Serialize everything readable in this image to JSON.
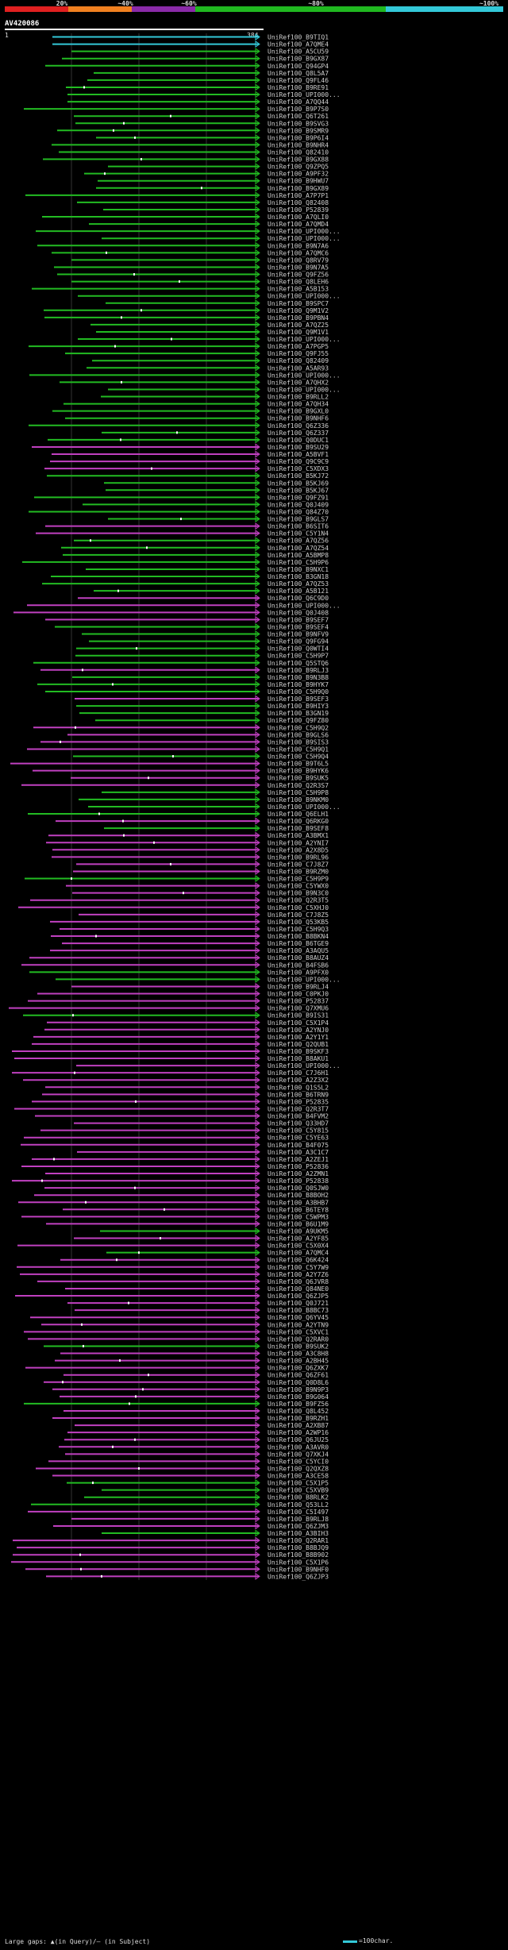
{
  "legend": {
    "labels": [
      "20%",
      "~40%",
      "~60%",
      "~80%",
      "~100%"
    ],
    "colors": [
      "#e02020",
      "#f08020",
      "#8a2aa8",
      "#20b820",
      "#33c8d8"
    ]
  },
  "query": {
    "name": "AV420086",
    "range_start": "1",
    "range_end": "384"
  },
  "colors": {
    "cyan": "#33c8d8",
    "green": "#22bb22",
    "magenta": "#c040c0",
    "gridline": "#333333"
  },
  "footer": {
    "gaps_text": "Large gaps: ▲(in Query)/— (in Subject)",
    "scale_text": "=100char."
  },
  "hits": [
    {
      "name": "UniRef100_B9TIQ1",
      "color": "cyan"
    },
    {
      "name": "UniRef100_A7QME4",
      "color": "cyan"
    },
    {
      "name": "UniRef100_A5CU59",
      "color": "green"
    },
    {
      "name": "UniRef100_B9GX87",
      "color": "green"
    },
    {
      "name": "UniRef100_Q94GP4",
      "color": "green"
    },
    {
      "name": "UniRef100_Q8L5A7",
      "color": "green"
    },
    {
      "name": "UniRef100_Q9FL46",
      "color": "green"
    },
    {
      "name": "UniRef100_B9RE91",
      "color": "green"
    },
    {
      "name": "UniRef100_UPI000...",
      "color": "green"
    },
    {
      "name": "UniRef100_A7QQ44",
      "color": "green"
    },
    {
      "name": "UniRef100_B9P7S0",
      "color": "green"
    },
    {
      "name": "UniRef100_Q6T261",
      "color": "green"
    },
    {
      "name": "UniRef100_B9SVG3",
      "color": "green"
    },
    {
      "name": "UniRef100_B9SMR9",
      "color": "green"
    },
    {
      "name": "UniRef100_B9P6I4",
      "color": "green"
    },
    {
      "name": "UniRef100_B9NHR4",
      "color": "green"
    },
    {
      "name": "UniRef100_Q82410",
      "color": "green"
    },
    {
      "name": "UniRef100_B9GX88",
      "color": "green"
    },
    {
      "name": "UniRef100_Q9ZPQ5",
      "color": "green"
    },
    {
      "name": "UniRef100_A9PF32",
      "color": "green"
    },
    {
      "name": "UniRef100_B9HWU7",
      "color": "green"
    },
    {
      "name": "UniRef100_B9GX89",
      "color": "green"
    },
    {
      "name": "UniRef100_A7P7P1",
      "color": "green"
    },
    {
      "name": "UniRef100_Q82408",
      "color": "green"
    },
    {
      "name": "UniRef100_P52839",
      "color": "green"
    },
    {
      "name": "UniRef100_A7QLI0",
      "color": "green"
    },
    {
      "name": "UniRef100_A7QMD4",
      "color": "green"
    },
    {
      "name": "UniRef100_UPI000...",
      "color": "green"
    },
    {
      "name": "UniRef100_UPI000...",
      "color": "green"
    },
    {
      "name": "UniRef100_B9N7A6",
      "color": "green"
    },
    {
      "name": "UniRef100_A7QMC6",
      "color": "green"
    },
    {
      "name": "UniRef100_Q8RV79",
      "color": "green"
    },
    {
      "name": "UniRef100_B9N7A5",
      "color": "green"
    },
    {
      "name": "UniRef100_Q9FZ56",
      "color": "green"
    },
    {
      "name": "UniRef100_Q8LEH6",
      "color": "green"
    },
    {
      "name": "UniRef100_A5B153",
      "color": "green"
    },
    {
      "name": "UniRef100_UPI000...",
      "color": "green"
    },
    {
      "name": "UniRef100_B9SPC7",
      "color": "green"
    },
    {
      "name": "UniRef100_Q9M1V2",
      "color": "green"
    },
    {
      "name": "UniRef100_B9PBN4",
      "color": "green"
    },
    {
      "name": "UniRef100_A7QZ25",
      "color": "green"
    },
    {
      "name": "UniRef100_Q9M1V1",
      "color": "green"
    },
    {
      "name": "UniRef100_UPI000...",
      "color": "green"
    },
    {
      "name": "UniRef100_A7PGP5",
      "color": "green"
    },
    {
      "name": "UniRef100_Q9FJ55",
      "color": "green"
    },
    {
      "name": "UniRef100_Q82409",
      "color": "green"
    },
    {
      "name": "UniRef100_A5AR93",
      "color": "green"
    },
    {
      "name": "UniRef100_UPI000...",
      "color": "green"
    },
    {
      "name": "UniRef100_A7QHX2",
      "color": "green"
    },
    {
      "name": "UniRef100_UPI000...",
      "color": "green"
    },
    {
      "name": "UniRef100_B9RLL2",
      "color": "green"
    },
    {
      "name": "UniRef100_A7QH34",
      "color": "green"
    },
    {
      "name": "UniRef100_B9GXL0",
      "color": "green"
    },
    {
      "name": "UniRef100_B9NHF6",
      "color": "green"
    },
    {
      "name": "UniRef100_Q6Z336",
      "color": "green"
    },
    {
      "name": "UniRef100_Q6Z337",
      "color": "green"
    },
    {
      "name": "UniRef100_Q0DUC1",
      "color": "green"
    },
    {
      "name": "UniRef100_B9SU29",
      "color": "magenta"
    },
    {
      "name": "UniRef100_A5BVF1",
      "color": "magenta"
    },
    {
      "name": "UniRef100_Q9C9C9",
      "color": "magenta"
    },
    {
      "name": "UniRef100_C5XDX3",
      "color": "magenta"
    },
    {
      "name": "UniRef100_B5KJ72",
      "color": "green"
    },
    {
      "name": "UniRef100_B5KJ69",
      "color": "green"
    },
    {
      "name": "UniRef100_B5KJ67",
      "color": "green"
    },
    {
      "name": "UniRef100_Q9FZ91",
      "color": "green"
    },
    {
      "name": "UniRef100_Q0J409",
      "color": "green"
    },
    {
      "name": "UniRef100_Q84Z70",
      "color": "green"
    },
    {
      "name": "UniRef100_B9GLS7",
      "color": "green"
    },
    {
      "name": "UniRef100_B6SIT6",
      "color": "magenta"
    },
    {
      "name": "UniRef100_C5Y1N4",
      "color": "magenta"
    },
    {
      "name": "UniRef100_A7QZ56",
      "color": "green"
    },
    {
      "name": "UniRef100_A7QZ54",
      "color": "green"
    },
    {
      "name": "UniRef100_A5BMP8",
      "color": "green"
    },
    {
      "name": "UniRef100_C5H9P6",
      "color": "green"
    },
    {
      "name": "UniRef100_B9NXC1",
      "color": "green"
    },
    {
      "name": "UniRef100_B3GN18",
      "color": "green"
    },
    {
      "name": "UniRef100_A7QZ53",
      "color": "green"
    },
    {
      "name": "UniRef100_A5B121",
      "color": "green"
    },
    {
      "name": "UniRef100_Q6C9D0",
      "color": "magenta"
    },
    {
      "name": "UniRef100_UPI000...",
      "color": "magenta"
    },
    {
      "name": "UniRef100_Q0J408",
      "color": "magenta"
    },
    {
      "name": "UniRef100_B9SEF7",
      "color": "magenta"
    },
    {
      "name": "UniRef100_B9SEF4",
      "color": "green"
    },
    {
      "name": "UniRef100_B9NFV9",
      "color": "green"
    },
    {
      "name": "UniRef100_Q9FG94",
      "color": "green"
    },
    {
      "name": "UniRef100_Q0WTI4",
      "color": "green"
    },
    {
      "name": "UniRef100_C5H9P7",
      "color": "green"
    },
    {
      "name": "UniRef100_Q5STQ6",
      "color": "green"
    },
    {
      "name": "UniRef100_B9RLJ3",
      "color": "magenta"
    },
    {
      "name": "UniRef100_B9N3B8",
      "color": "green"
    },
    {
      "name": "UniRef100_B9HYK7",
      "color": "green"
    },
    {
      "name": "UniRef100_C5H9Q0",
      "color": "green"
    },
    {
      "name": "UniRef100_B9SEF3",
      "color": "magenta"
    },
    {
      "name": "UniRef100_B9HIY3",
      "color": "green"
    },
    {
      "name": "UniRef100_B3GN19",
      "color": "green"
    },
    {
      "name": "UniRef100_Q9FZ80",
      "color": "green"
    },
    {
      "name": "UniRef100_C5H9Q2",
      "color": "magenta"
    },
    {
      "name": "UniRef100_B9GLS6",
      "color": "magenta"
    },
    {
      "name": "UniRef100_B9SIS3",
      "color": "magenta"
    },
    {
      "name": "UniRef100_C5H9Q1",
      "color": "magenta"
    },
    {
      "name": "UniRef100_C5H9Q4",
      "color": "green"
    },
    {
      "name": "UniRef100_B9T6L5",
      "color": "magenta"
    },
    {
      "name": "UniRef100_B9HYK6",
      "color": "magenta"
    },
    {
      "name": "UniRef100_B9SUK5",
      "color": "magenta"
    },
    {
      "name": "UniRef100_Q2R3S7",
      "color": "magenta"
    },
    {
      "name": "UniRef100_C5H9P8",
      "color": "green"
    },
    {
      "name": "UniRef100_B9NKM0",
      "color": "green"
    },
    {
      "name": "UniRef100_UPI000...",
      "color": "green"
    },
    {
      "name": "UniRef100_Q6ELH1",
      "color": "green"
    },
    {
      "name": "UniRef100_Q6RKG0",
      "color": "magenta"
    },
    {
      "name": "UniRef100_B9SEF8",
      "color": "green"
    },
    {
      "name": "UniRef100_A3BMX1",
      "color": "magenta"
    },
    {
      "name": "UniRef100_A2YNI7",
      "color": "magenta"
    },
    {
      "name": "UniRef100_A2X8D5",
      "color": "magenta"
    },
    {
      "name": "UniRef100_B9RL96",
      "color": "magenta"
    },
    {
      "name": "UniRef100_C7J8Z7",
      "color": "magenta"
    },
    {
      "name": "UniRef100_B9RZM0",
      "color": "magenta"
    },
    {
      "name": "UniRef100_C5H9P9",
      "color": "green"
    },
    {
      "name": "UniRef100_C5YWX0",
      "color": "magenta"
    },
    {
      "name": "UniRef100_B9N3C0",
      "color": "magenta"
    },
    {
      "name": "UniRef100_Q2R3T5",
      "color": "magenta"
    },
    {
      "name": "UniRef100_C5XHJ0",
      "color": "magenta"
    },
    {
      "name": "UniRef100_C7J8Z5",
      "color": "magenta"
    },
    {
      "name": "UniRef100_Q53KB5",
      "color": "magenta"
    },
    {
      "name": "UniRef100_C5H9Q3",
      "color": "magenta"
    },
    {
      "name": "UniRef100_B8BKN4",
      "color": "magenta"
    },
    {
      "name": "UniRef100_B6TGE9",
      "color": "magenta"
    },
    {
      "name": "UniRef100_A3AQU5",
      "color": "magenta"
    },
    {
      "name": "UniRef100_B8AUZ4",
      "color": "magenta"
    },
    {
      "name": "UniRef100_B4FSB6",
      "color": "magenta"
    },
    {
      "name": "UniRef100_A9PFX0",
      "color": "green"
    },
    {
      "name": "UniRef100_UPI000...",
      "color": "green"
    },
    {
      "name": "UniRef100_B9RLJ4",
      "color": "magenta"
    },
    {
      "name": "UniRef100_C0PKJ0",
      "color": "magenta"
    },
    {
      "name": "UniRef100_P52837",
      "color": "magenta"
    },
    {
      "name": "UniRef100_Q7XMU6",
      "color": "magenta"
    },
    {
      "name": "UniRef100_B9IS31",
      "color": "green"
    },
    {
      "name": "UniRef100_C5X1P4",
      "color": "magenta"
    },
    {
      "name": "UniRef100_A2YNJ0",
      "color": "magenta"
    },
    {
      "name": "UniRef100_A2Y1Y1",
      "color": "magenta"
    },
    {
      "name": "UniRef100_Q2QUB1",
      "color": "magenta"
    },
    {
      "name": "UniRef100_B9SKF3",
      "color": "magenta"
    },
    {
      "name": "UniRef100_B8AKU1",
      "color": "magenta"
    },
    {
      "name": "UniRef100_UPI000...",
      "color": "magenta"
    },
    {
      "name": "UniRef100_C7J6H1",
      "color": "magenta"
    },
    {
      "name": "UniRef100_A2Z3X2",
      "color": "magenta"
    },
    {
      "name": "UniRef100_Q1S5L2",
      "color": "magenta"
    },
    {
      "name": "UniRef100_B6TRN9",
      "color": "magenta"
    },
    {
      "name": "UniRef100_P52835",
      "color": "magenta"
    },
    {
      "name": "UniRef100_Q2R3T7",
      "color": "magenta"
    },
    {
      "name": "UniRef100_B4FVM2",
      "color": "magenta"
    },
    {
      "name": "UniRef100_Q33HD7",
      "color": "magenta"
    },
    {
      "name": "UniRef100_C5Y815",
      "color": "magenta"
    },
    {
      "name": "UniRef100_C5YE63",
      "color": "magenta"
    },
    {
      "name": "UniRef100_B4F075",
      "color": "magenta"
    },
    {
      "name": "UniRef100_A3C1C7",
      "color": "magenta"
    },
    {
      "name": "UniRef100_A2ZEJ1",
      "color": "magenta"
    },
    {
      "name": "UniRef100_P52836",
      "color": "magenta"
    },
    {
      "name": "UniRef100_A2ZMN1",
      "color": "magenta"
    },
    {
      "name": "UniRef100_P52838",
      "color": "magenta"
    },
    {
      "name": "UniRef100_Q0SJW0",
      "color": "magenta"
    },
    {
      "name": "UniRef100_B8BOH2",
      "color": "magenta"
    },
    {
      "name": "UniRef100_A3BHB7",
      "color": "magenta"
    },
    {
      "name": "UniRef100_B6TEY8",
      "color": "magenta"
    },
    {
      "name": "UniRef100_C5WPM3",
      "color": "magenta"
    },
    {
      "name": "UniRef100_B6U1M9",
      "color": "magenta"
    },
    {
      "name": "UniRef100_A9UKM5",
      "color": "green"
    },
    {
      "name": "UniRef100_A2YF85",
      "color": "magenta"
    },
    {
      "name": "UniRef100_C5X0X4",
      "color": "magenta"
    },
    {
      "name": "UniRef100_A7QMC4",
      "color": "green"
    },
    {
      "name": "UniRef100_Q6K424",
      "color": "magenta"
    },
    {
      "name": "UniRef100_C5Y7W9",
      "color": "magenta"
    },
    {
      "name": "UniRef100_A2Y7Z6",
      "color": "magenta"
    },
    {
      "name": "UniRef100_Q6JVR8",
      "color": "magenta"
    },
    {
      "name": "UniRef100_Q84NE0",
      "color": "magenta"
    },
    {
      "name": "UniRef100_Q6ZJP5",
      "color": "magenta"
    },
    {
      "name": "UniRef100_Q0J721",
      "color": "magenta"
    },
    {
      "name": "UniRef100_B8BC73",
      "color": "magenta"
    },
    {
      "name": "UniRef100_Q6YV45",
      "color": "magenta"
    },
    {
      "name": "UniRef100_A2YTN9",
      "color": "magenta"
    },
    {
      "name": "UniRef100_C5XVC1",
      "color": "magenta"
    },
    {
      "name": "UniRef100_Q2RAR0",
      "color": "magenta"
    },
    {
      "name": "UniRef100_B9SUK2",
      "color": "green"
    },
    {
      "name": "UniRef100_A3C8H8",
      "color": "magenta"
    },
    {
      "name": "UniRef100_A2BH45",
      "color": "magenta"
    },
    {
      "name": "UniRef100_Q6ZXK7",
      "color": "magenta"
    },
    {
      "name": "UniRef100_Q6ZF61",
      "color": "magenta"
    },
    {
      "name": "UniRef100_Q0D8L6",
      "color": "magenta"
    },
    {
      "name": "UniRef100_B9N9P3",
      "color": "magenta"
    },
    {
      "name": "UniRef100_B9G064",
      "color": "magenta"
    },
    {
      "name": "UniRef100_B9FZ56",
      "color": "green"
    },
    {
      "name": "UniRef100_Q8L452",
      "color": "magenta"
    },
    {
      "name": "UniRef100_B9RZH1",
      "color": "magenta"
    },
    {
      "name": "UniRef100_A2XB87",
      "color": "magenta"
    },
    {
      "name": "UniRef100_A2WP16",
      "color": "magenta"
    },
    {
      "name": "UniRef100_Q6JU25",
      "color": "magenta"
    },
    {
      "name": "UniRef100_A3AVR0",
      "color": "magenta"
    },
    {
      "name": "UniRef100_Q7XKJ4",
      "color": "magenta"
    },
    {
      "name": "UniRef100_C5YCI0",
      "color": "magenta"
    },
    {
      "name": "UniRef100_Q2QXZ8",
      "color": "magenta"
    },
    {
      "name": "UniRef100_A3CE58",
      "color": "magenta"
    },
    {
      "name": "UniRef100_C5X1P5",
      "color": "green"
    },
    {
      "name": "UniRef100_C5XVB9",
      "color": "green"
    },
    {
      "name": "UniRef100_B8RLK2",
      "color": "green"
    },
    {
      "name": "UniRef100_Q53LL2",
      "color": "green"
    },
    {
      "name": "UniRef100_C5I497",
      "color": "magenta"
    },
    {
      "name": "UniRef100_B9RLJ8",
      "color": "magenta"
    },
    {
      "name": "UniRef100_Q6ZJM3",
      "color": "magenta"
    },
    {
      "name": "UniRef100_A3BIH3",
      "color": "green"
    },
    {
      "name": "UniRef100_Q2RAR1",
      "color": "magenta"
    },
    {
      "name": "UniRef100_B8BJQ9",
      "color": "magenta"
    },
    {
      "name": "UniRef100_B8B902",
      "color": "magenta"
    },
    {
      "name": "UniRef100_C5X1P6",
      "color": "magenta"
    },
    {
      "name": "UniRef100_B9NHF0",
      "color": "magenta"
    },
    {
      "name": "UniRef100_Q6ZJP3",
      "color": "magenta"
    }
  ]
}
